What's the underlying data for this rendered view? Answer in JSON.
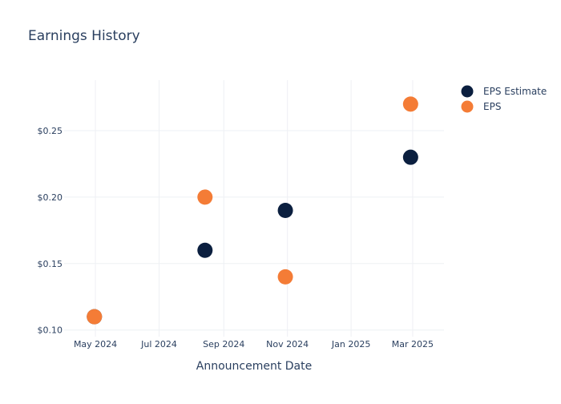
{
  "chart_data": {
    "type": "scatter",
    "title": "Earnings History",
    "xlabel": "Announcement Date",
    "ylabel": "",
    "x_ticks": [
      {
        "date": "2024-05-01",
        "label": "May 2024"
      },
      {
        "date": "2024-07-01",
        "label": "Jul 2024"
      },
      {
        "date": "2024-09-01",
        "label": "Sep 2024"
      },
      {
        "date": "2024-11-01",
        "label": "Nov 2024"
      },
      {
        "date": "2025-01-01",
        "label": "Jan 2025"
      },
      {
        "date": "2025-03-01",
        "label": "Mar 2025"
      }
    ],
    "xlim": [
      "2024-04-01",
      "2025-03-31"
    ],
    "y_ticks": [
      {
        "value": 0.1,
        "label": "$0.10"
      },
      {
        "value": 0.15,
        "label": "$0.15"
      },
      {
        "value": 0.2,
        "label": "$0.20"
      },
      {
        "value": 0.25,
        "label": "$0.25"
      }
    ],
    "ylim": [
      0.095,
      0.288
    ],
    "grid": true,
    "legend_position": "top-right",
    "series": [
      {
        "name": "EPS Estimate",
        "color": "#0b1f3f",
        "points": [
          {
            "x": "2024-04-30",
            "y": 0.11
          },
          {
            "x": "2024-08-14",
            "y": 0.16
          },
          {
            "x": "2024-10-30",
            "y": 0.19
          },
          {
            "x": "2025-02-27",
            "y": 0.23
          }
        ]
      },
      {
        "name": "EPS",
        "color": "#f47c36",
        "points": [
          {
            "x": "2024-04-30",
            "y": 0.11
          },
          {
            "x": "2024-08-14",
            "y": 0.2
          },
          {
            "x": "2024-10-30",
            "y": 0.14
          },
          {
            "x": "2025-02-27",
            "y": 0.27
          }
        ]
      }
    ]
  }
}
